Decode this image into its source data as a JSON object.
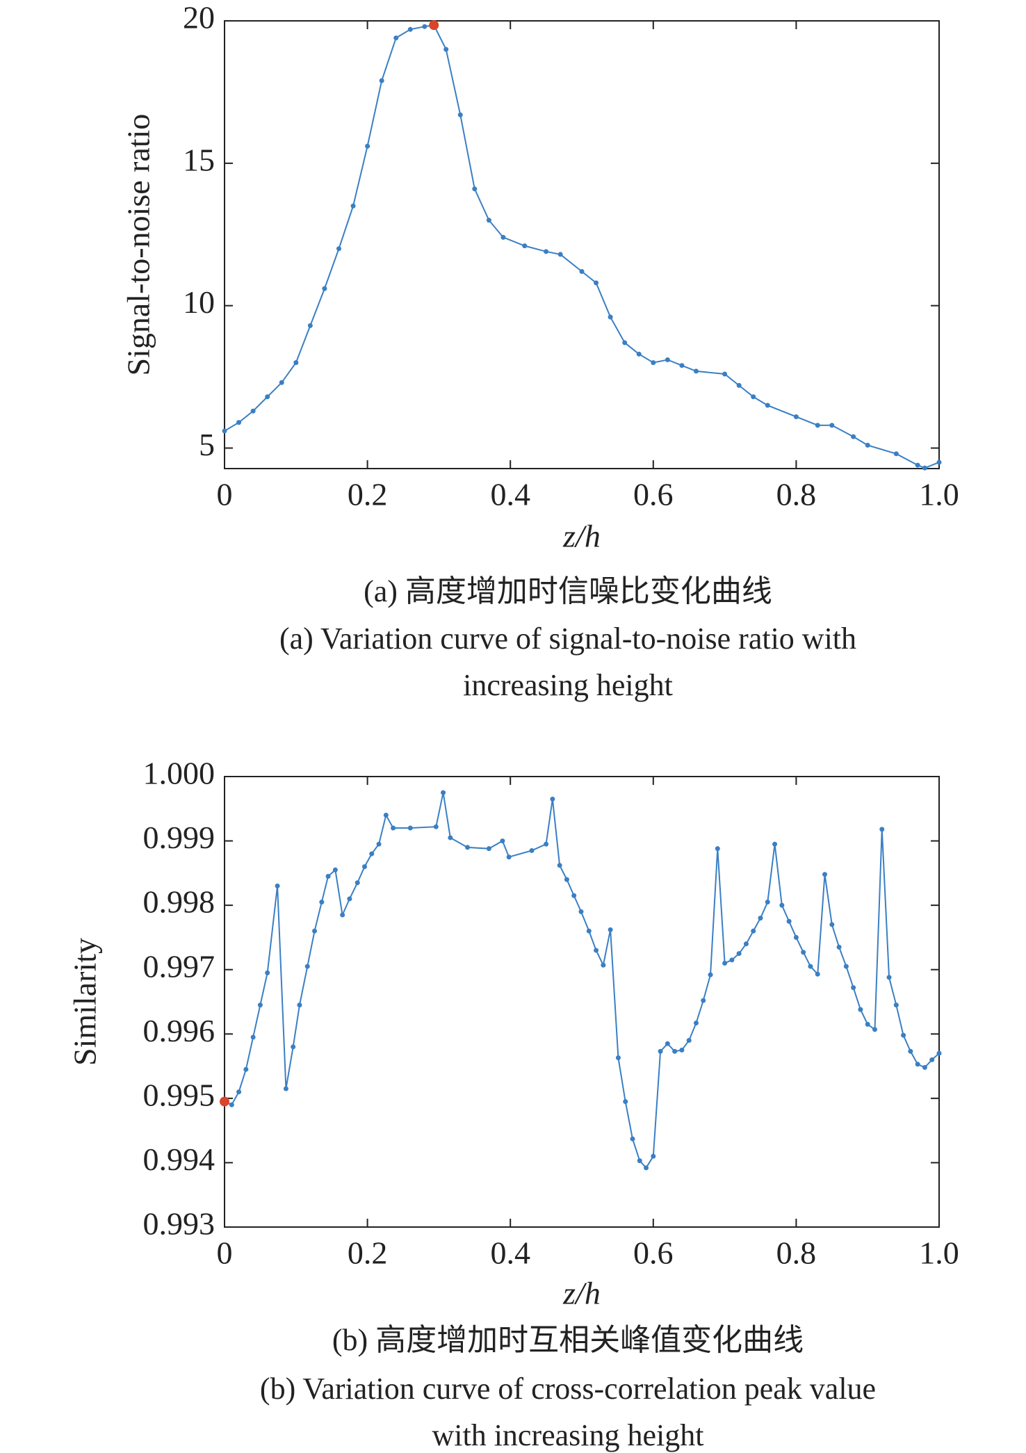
{
  "chart_data": [
    {
      "type": "line",
      "ylabel": "Signal-to-noise ratio",
      "xlabel": "z/h",
      "caption": [
        "(a) 高度增加时信噪比变化曲线",
        "(a) Variation curve of signal-to-noise ratio with",
        "increasing height"
      ],
      "x": [
        0,
        0.02,
        0.04,
        0.06,
        0.08,
        0.1,
        0.12,
        0.14,
        0.16,
        0.18,
        0.2,
        0.22,
        0.24,
        0.26,
        0.28,
        0.293,
        0.31,
        0.33,
        0.35,
        0.37,
        0.39,
        0.42,
        0.45,
        0.47,
        0.5,
        0.52,
        0.54,
        0.56,
        0.58,
        0.6,
        0.62,
        0.64,
        0.66,
        0.7,
        0.72,
        0.74,
        0.76,
        0.8,
        0.83,
        0.85,
        0.88,
        0.9,
        0.94,
        0.97,
        0.98,
        1.0
      ],
      "values": [
        5.6,
        5.9,
        6.3,
        6.8,
        7.3,
        8.0,
        9.3,
        10.6,
        12.0,
        13.5,
        15.6,
        17.9,
        19.4,
        19.7,
        19.8,
        19.85,
        19.0,
        16.7,
        14.1,
        13.0,
        12.4,
        12.1,
        11.9,
        11.8,
        11.2,
        10.8,
        9.6,
        8.7,
        8.3,
        8.0,
        8.1,
        7.9,
        7.7,
        7.6,
        7.2,
        6.8,
        6.5,
        6.1,
        5.8,
        5.8,
        5.4,
        5.1,
        4.8,
        4.4,
        4.3,
        4.5
      ],
      "color": "#3a7fc4",
      "highlight": {
        "x": 0.293,
        "y": 19.85,
        "color": "#d9442a"
      },
      "xlim": [
        0,
        1
      ],
      "ylim": [
        4.28,
        20
      ],
      "xticks": [
        0,
        0.2,
        0.4,
        0.6,
        0.8,
        {
          "value": 1,
          "label": "1.0"
        }
      ],
      "yticks": [
        5,
        10,
        15,
        20
      ]
    },
    {
      "type": "line",
      "ylabel": "Similarity",
      "xlabel": "z/h",
      "caption": [
        "(b) 高度增加时互相关峰值变化曲线",
        "(b) Variation curve of cross-correlation peak value",
        "with increasing height"
      ],
      "x": [
        0,
        0.01,
        0.02,
        0.03,
        0.04,
        0.05,
        0.06,
        0.074,
        0.086,
        0.096,
        0.105,
        0.116,
        0.126,
        0.136,
        0.145,
        0.155,
        0.165,
        0.175,
        0.186,
        0.196,
        0.206,
        0.216,
        0.226,
        0.236,
        0.26,
        0.296,
        0.306,
        0.316,
        0.34,
        0.37,
        0.389,
        0.398,
        0.43,
        0.45,
        0.459,
        0.469,
        0.479,
        0.489,
        0.499,
        0.51,
        0.52,
        0.53,
        0.54,
        0.551,
        0.561,
        0.571,
        0.581,
        0.59,
        0.6,
        0.61,
        0.62,
        0.63,
        0.64,
        0.65,
        0.66,
        0.67,
        0.68,
        0.69,
        0.7,
        0.71,
        0.72,
        0.73,
        0.74,
        0.75,
        0.76,
        0.77,
        0.78,
        0.79,
        0.8,
        0.81,
        0.82,
        0.83,
        0.84,
        0.85,
        0.86,
        0.87,
        0.88,
        0.89,
        0.9,
        0.91,
        0.92,
        0.93,
        0.94,
        0.95,
        0.96,
        0.97,
        0.98,
        0.99,
        1.0
      ],
      "values": [
        0.99495,
        0.9949,
        0.9951,
        0.99545,
        0.99595,
        0.99645,
        0.99695,
        0.9983,
        0.99515,
        0.9958,
        0.99645,
        0.99705,
        0.9976,
        0.99805,
        0.99845,
        0.99855,
        0.99785,
        0.9981,
        0.99835,
        0.9986,
        0.9988,
        0.99895,
        0.9994,
        0.9992,
        0.9992,
        0.99922,
        0.99975,
        0.99905,
        0.9989,
        0.99888,
        0.999,
        0.99875,
        0.99885,
        0.99895,
        0.99965,
        0.99862,
        0.9984,
        0.99815,
        0.9979,
        0.9976,
        0.9973,
        0.99707,
        0.99762,
        0.99563,
        0.99495,
        0.99437,
        0.99403,
        0.99392,
        0.9941,
        0.99573,
        0.99585,
        0.99573,
        0.99575,
        0.9959,
        0.99617,
        0.99652,
        0.99692,
        0.99888,
        0.9971,
        0.99715,
        0.99725,
        0.9974,
        0.9976,
        0.9978,
        0.99805,
        0.99895,
        0.998,
        0.99775,
        0.9975,
        0.99727,
        0.99705,
        0.99693,
        0.99848,
        0.9977,
        0.99735,
        0.99705,
        0.99672,
        0.99638,
        0.99615,
        0.99607,
        0.99918,
        0.99688,
        0.99645,
        0.99598,
        0.99573,
        0.99553,
        0.99548,
        0.9956,
        0.9957
      ],
      "color": "#3a7fc4",
      "highlight": {
        "x": 0,
        "y": 0.99495,
        "color": "#d9442a"
      },
      "xlim": [
        0,
        1
      ],
      "ylim": [
        0.993,
        1.0
      ],
      "xticks": [
        0,
        0.2,
        0.4,
        0.6,
        0.8,
        {
          "value": 1,
          "label": "1.0"
        }
      ],
      "yticks": [
        0.993,
        0.994,
        0.995,
        0.996,
        0.997,
        0.998,
        0.999,
        {
          "value": 1,
          "label": "1.000"
        }
      ]
    }
  ]
}
